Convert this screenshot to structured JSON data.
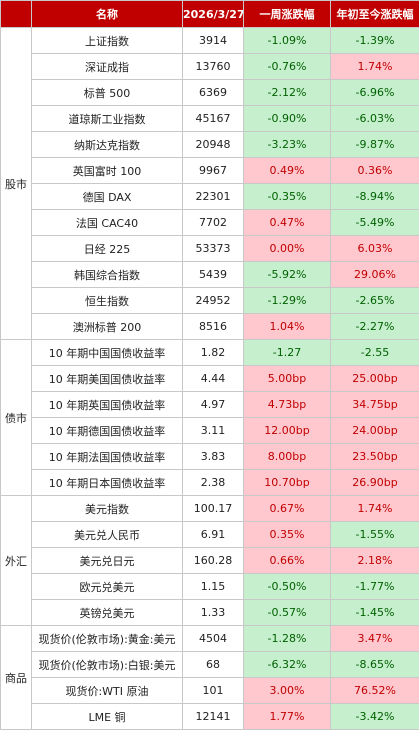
{
  "header": {
    "col_category": "",
    "col_name": "名称",
    "col_date": "2026/3/27",
    "col_week": "一周涨跌幅",
    "col_ytd": "年初至今涨跌幅"
  },
  "groups": [
    {
      "category": "股市",
      "rows": [
        {
          "name": "上证指数",
          "value": "3914",
          "week": "-1.09%",
          "week_dir": "down",
          "ytd": "-1.39%",
          "ytd_dir": "down"
        },
        {
          "name": "深证成指",
          "value": "13760",
          "week": "-0.76%",
          "week_dir": "down",
          "ytd": "1.74%",
          "ytd_dir": "up"
        },
        {
          "name": "标普 500",
          "value": "6369",
          "week": "-2.12%",
          "week_dir": "down",
          "ytd": "-6.96%",
          "ytd_dir": "down"
        },
        {
          "name": "道琼斯工业指数",
          "value": "45167",
          "week": "-0.90%",
          "week_dir": "down",
          "ytd": "-6.03%",
          "ytd_dir": "down"
        },
        {
          "name": "纳斯达克指数",
          "value": "20948",
          "week": "-3.23%",
          "week_dir": "down",
          "ytd": "-9.87%",
          "ytd_dir": "down"
        },
        {
          "name": "英国富时 100",
          "value": "9967",
          "week": "0.49%",
          "week_dir": "up",
          "ytd": "0.36%",
          "ytd_dir": "up"
        },
        {
          "name": "德国 DAX",
          "value": "22301",
          "week": "-0.35%",
          "week_dir": "down",
          "ytd": "-8.94%",
          "ytd_dir": "down"
        },
        {
          "name": "法国 CAC40",
          "value": "7702",
          "week": "0.47%",
          "week_dir": "up",
          "ytd": "-5.49%",
          "ytd_dir": "down"
        },
        {
          "name": "日经 225",
          "value": "53373",
          "week": "0.00%",
          "week_dir": "up",
          "ytd": "6.03%",
          "ytd_dir": "up"
        },
        {
          "name": "韩国综合指数",
          "value": "5439",
          "week": "-5.92%",
          "week_dir": "down",
          "ytd": "29.06%",
          "ytd_dir": "up"
        },
        {
          "name": "恒生指数",
          "value": "24952",
          "week": "-1.29%",
          "week_dir": "down",
          "ytd": "-2.65%",
          "ytd_dir": "down"
        },
        {
          "name": "澳洲标普 200",
          "value": "8516",
          "week": "1.04%",
          "week_dir": "up",
          "ytd": "-2.27%",
          "ytd_dir": "down"
        }
      ]
    },
    {
      "category": "债市",
      "rows": [
        {
          "name": "10 年期中国国债收益率",
          "value": "1.82",
          "week": "-1.27",
          "week_dir": "down",
          "ytd": "-2.55",
          "ytd_dir": "down"
        },
        {
          "name": "10 年期美国国债收益率",
          "value": "4.44",
          "week": "5.00bp",
          "week_dir": "up",
          "ytd": "25.00bp",
          "ytd_dir": "up"
        },
        {
          "name": "10 年期英国国债收益率",
          "value": "4.97",
          "week": "4.73bp",
          "week_dir": "up",
          "ytd": "34.75bp",
          "ytd_dir": "up"
        },
        {
          "name": "10 年期德国国债收益率",
          "value": "3.11",
          "week": "12.00bp",
          "week_dir": "up",
          "ytd": "24.00bp",
          "ytd_dir": "up"
        },
        {
          "name": "10 年期法国国债收益率",
          "value": "3.83",
          "week": "8.00bp",
          "week_dir": "up",
          "ytd": "23.50bp",
          "ytd_dir": "up"
        },
        {
          "name": "10 年期日本国债收益率",
          "value": "2.38",
          "week": "10.70bp",
          "week_dir": "up",
          "ytd": "26.90bp",
          "ytd_dir": "up"
        }
      ]
    },
    {
      "category": "外汇",
      "rows": [
        {
          "name": "美元指数",
          "value": "100.17",
          "week": "0.67%",
          "week_dir": "up",
          "ytd": "1.74%",
          "ytd_dir": "up"
        },
        {
          "name": "美元兑人民币",
          "value": "6.91",
          "week": "0.35%",
          "week_dir": "up",
          "ytd": "-1.55%",
          "ytd_dir": "down"
        },
        {
          "name": "美元兑日元",
          "value": "160.28",
          "week": "0.66%",
          "week_dir": "up",
          "ytd": "2.18%",
          "ytd_dir": "up"
        },
        {
          "name": "欧元兑美元",
          "value": "1.15",
          "week": "-0.50%",
          "week_dir": "down",
          "ytd": "-1.77%",
          "ytd_dir": "down"
        },
        {
          "name": "英镑兑美元",
          "value": "1.33",
          "week": "-0.57%",
          "week_dir": "down",
          "ytd": "-1.45%",
          "ytd_dir": "down"
        }
      ]
    },
    {
      "category": "商品",
      "rows": [
        {
          "name": "现货价(伦敦市场):黄金:美元",
          "value": "4504",
          "week": "-1.28%",
          "week_dir": "down",
          "ytd": "3.47%",
          "ytd_dir": "up"
        },
        {
          "name": "现货价(伦敦市场):白银:美元",
          "value": "68",
          "week": "-6.32%",
          "week_dir": "down",
          "ytd": "-8.65%",
          "ytd_dir": "down"
        },
        {
          "name": "现货价:WTI 原油",
          "value": "101",
          "week": "3.00%",
          "week_dir": "up",
          "ytd": "76.52%",
          "ytd_dir": "up"
        },
        {
          "name": "LME 铜",
          "value": "12141",
          "week": "1.77%",
          "week_dir": "up",
          "ytd": "-3.42%",
          "ytd_dir": "down"
        }
      ]
    }
  ],
  "colors": {
    "header_bg": "#c00000",
    "up_bg": "#ffc7ce",
    "up_text": "#c00000",
    "down_bg": "#c6efce",
    "down_text": "#006100"
  }
}
